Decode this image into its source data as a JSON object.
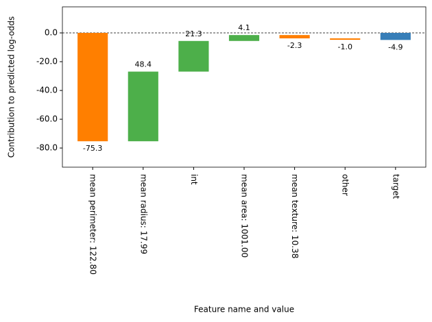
{
  "chart_data": {
    "type": "waterfall",
    "xlabel": "Feature name and value",
    "ylabel": "Contribution to predicted log-odds",
    "categories": [
      "mean perimeter: 122.80",
      "mean radius: 17.99",
      "int",
      "mean area: 1001.00",
      "mean texture: 10.38",
      "other",
      "target"
    ],
    "values": [
      -75.3,
      48.4,
      21.3,
      4.1,
      -2.3,
      -1.0,
      -4.9
    ],
    "value_labels": [
      "-75.3",
      "48.4",
      "21.3",
      "4.1",
      "-2.3",
      "-1.0",
      "-4.9"
    ],
    "colors": {
      "positive": "#4daf4a",
      "negative": "#ff7f00",
      "total": "#377eb8"
    },
    "label_colors": {
      "positive": "green",
      "negative": "#e41a1c"
    },
    "ylim": [
      -93.3,
      18.1
    ],
    "yticks": [
      {
        "value": 0,
        "label": "0.0"
      },
      {
        "value": -20,
        "label": "-20.0"
      },
      {
        "value": -40,
        "label": "-40.0"
      },
      {
        "value": -60,
        "label": "-60.0"
      },
      {
        "value": -80,
        "label": "-80.0"
      }
    ]
  }
}
